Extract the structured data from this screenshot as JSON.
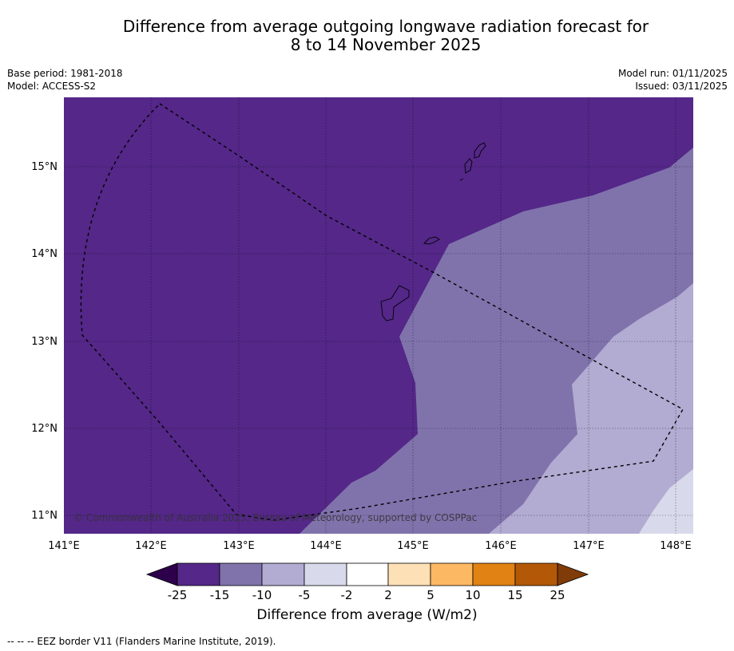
{
  "header": {
    "title_line1": "Difference from average outgoing longwave radiation forecast for",
    "title_line2": "8 to 14 November 2025",
    "base_period": "Base period: 1981-2018",
    "model": "Model: ACCESS-S2",
    "model_run": "Model run: 01/11/2025",
    "issued": "Issued: 03/11/2025"
  },
  "map": {
    "lon_ticks": [
      "141°E",
      "142°E",
      "143°E",
      "144°E",
      "145°E",
      "146°E",
      "147°E",
      "148°E"
    ],
    "lat_ticks": [
      "15°N",
      "14°N",
      "13°N",
      "12°N",
      "11°N"
    ],
    "copyright": "© Commonwealth of Australia 2025, Bureau of Meteorology, supported by COSPPac"
  },
  "legend": {
    "title": "Difference from average (W/m2)",
    "ticks": [
      "-25",
      "-15",
      "-10",
      "-5",
      "-2",
      "2",
      "5",
      "10",
      "15",
      "25"
    ],
    "colors": [
      "#2d004b",
      "#542788",
      "#8073ac",
      "#b2abd2",
      "#d8daeb",
      "#ffffff",
      "#fee0b6",
      "#fdb863",
      "#e08214",
      "#b35806",
      "#7f3b08"
    ]
  },
  "footer": {
    "eez_note": "--  --  -- EEZ border V11 (Flanders Marine Institute, 2019)."
  }
}
